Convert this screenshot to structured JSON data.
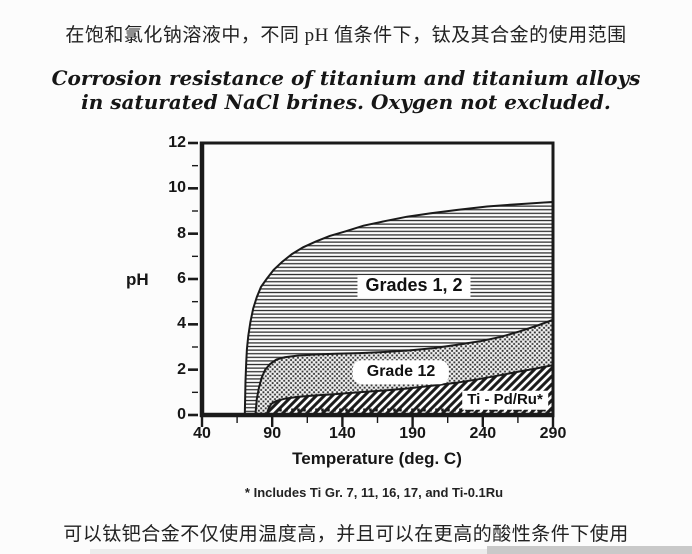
{
  "page": {
    "top_caption_cn": "在饱和氯化钠溶液中，不同 pH 值条件下，钛及其合金的使用范围",
    "bottom_caption_cn": "可以钛钯合金不仅使用温度高，并且可以在更高的酸性条件下使用"
  },
  "figure": {
    "title_line1": "Corrosion resistance of titanium and titanium alloys",
    "title_line2": "in saturated NaCl brines.  Oxygen not excluded.",
    "footnote": "* Includes Ti Gr. 7, 11, 16, 17, and Ti-0.1Ru"
  },
  "chart_data": {
    "type": "area",
    "title": "Corrosion resistance of titanium and titanium alloys in saturated NaCl brines. Oxygen not excluded.",
    "xlabel": "Temperature (deg. C)",
    "ylabel": "pH",
    "xlim": [
      40,
      290
    ],
    "ylim": [
      0,
      12
    ],
    "x_ticks": [
      40,
      90,
      140,
      190,
      240,
      290
    ],
    "x_minor_step": 25,
    "y_ticks": [
      0,
      2,
      4,
      6,
      8,
      10,
      12
    ],
    "y_minor_step": 1,
    "grid": false,
    "legend_position": "in-plot-labels",
    "series": [
      {
        "name": "Grades 1, 2",
        "pattern": "horizontal-lines",
        "description": "upper pH limit boundary vs temperature (deg C)",
        "boundary": [
          [
            70.5,
            0
          ],
          [
            71,
            1.5
          ],
          [
            71.5,
            2.3
          ],
          [
            72,
            2.9
          ],
          [
            73,
            3.5
          ],
          [
            74.5,
            4.1
          ],
          [
            76.5,
            4.7
          ],
          [
            79,
            5.2
          ],
          [
            82,
            5.65
          ],
          [
            86,
            6.0
          ],
          [
            91,
            6.4
          ],
          [
            97,
            6.75
          ],
          [
            104,
            7.1
          ],
          [
            112,
            7.4
          ],
          [
            121,
            7.65
          ],
          [
            131,
            7.9
          ],
          [
            142,
            8.1
          ],
          [
            155,
            8.35
          ],
          [
            170,
            8.55
          ],
          [
            186,
            8.75
          ],
          [
            203,
            8.9
          ],
          [
            222,
            9.05
          ],
          [
            243,
            9.2
          ],
          [
            265,
            9.3
          ],
          [
            290,
            9.4
          ]
        ]
      },
      {
        "name": "Grade 12",
        "pattern": "dots",
        "description": "upper pH limit boundary vs temperature (deg C)",
        "boundary": [
          [
            78,
            0
          ],
          [
            79,
            0.7
          ],
          [
            80.5,
            1.2
          ],
          [
            82.5,
            1.65
          ],
          [
            85,
            2.0
          ],
          [
            88.5,
            2.25
          ],
          [
            93,
            2.45
          ],
          [
            99,
            2.55
          ],
          [
            108,
            2.62
          ],
          [
            120,
            2.67
          ],
          [
            135,
            2.7
          ],
          [
            152,
            2.73
          ],
          [
            170,
            2.78
          ],
          [
            188,
            2.85
          ],
          [
            205,
            2.95
          ],
          [
            222,
            3.1
          ],
          [
            238,
            3.25
          ],
          [
            253,
            3.45
          ],
          [
            267,
            3.7
          ],
          [
            279,
            3.95
          ],
          [
            290,
            4.2
          ]
        ]
      },
      {
        "name": "Ti - Pd/Ru*",
        "pattern": "diagonal-lines",
        "description": "upper pH limit boundary vs temperature (deg C)",
        "boundary": [
          [
            86,
            0
          ],
          [
            87.5,
            0.3
          ],
          [
            89.5,
            0.5
          ],
          [
            93,
            0.62
          ],
          [
            99,
            0.72
          ],
          [
            108,
            0.8
          ],
          [
            120,
            0.86
          ],
          [
            135,
            0.92
          ],
          [
            152,
            1.0
          ],
          [
            170,
            1.08
          ],
          [
            188,
            1.18
          ],
          [
            205,
            1.3
          ],
          [
            221,
            1.42
          ],
          [
            237,
            1.58
          ],
          [
            252,
            1.75
          ],
          [
            266,
            1.92
          ],
          [
            278,
            2.05
          ],
          [
            290,
            2.2
          ]
        ]
      }
    ],
    "baseline_dotted_line": {
      "ph": 0.22,
      "temp_start": 95,
      "temp_end": 290
    },
    "colors": {
      "ink": "#1a1a1a",
      "background": "#fcfcfc"
    }
  }
}
